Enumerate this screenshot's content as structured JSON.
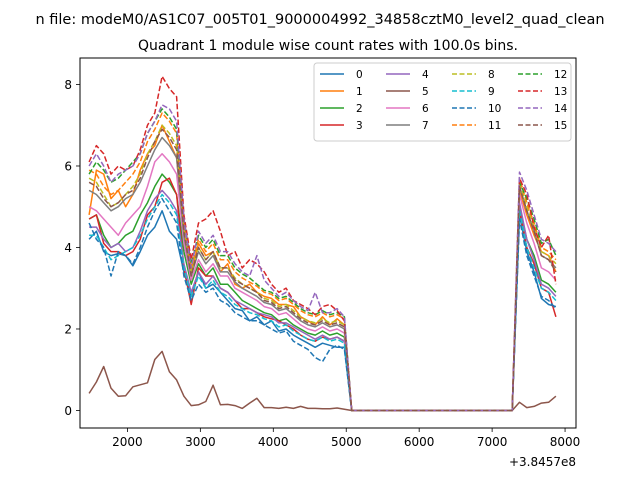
{
  "figure": {
    "suptitle": "n file: modeM0/AS1C07_005T01_9000004992_34858cztM0_level2_quad_clean",
    "title": "Quadrant 1 module wise count rates with 100.0s bins."
  },
  "chart_data": {
    "type": "line",
    "xlim": [
      1350,
      8150
    ],
    "ylim": [
      -0.43,
      8.65
    ],
    "x_offset_label": "+3.8457e8",
    "x_ticks": [
      2000,
      3000,
      4000,
      5000,
      6000,
      7000,
      8000
    ],
    "x_tick_labels": [
      "2000",
      "3000",
      "4000",
      "5000",
      "6000",
      "7000",
      "8000"
    ],
    "y_ticks": [
      0,
      2,
      4,
      6,
      8
    ],
    "y_tick_labels": [
      "0",
      "2",
      "4",
      "6",
      "8"
    ],
    "grid": false,
    "legend": {
      "placement": "upper right",
      "columns": 4
    },
    "x": [
      1475,
      1575,
      1675,
      1775,
      1875,
      1975,
      2075,
      2175,
      2275,
      2375,
      2475,
      2575,
      2675,
      2775,
      2875,
      2975,
      3075,
      3175,
      3275,
      3375,
      3475,
      3575,
      3675,
      3775,
      3875,
      3975,
      4075,
      4175,
      4275,
      4375,
      4475,
      4575,
      4675,
      4775,
      4875,
      4975,
      5075,
      5175,
      5275,
      5375,
      5475,
      5575,
      5675,
      5775,
      5875,
      5975,
      6075,
      6175,
      6275,
      6375,
      6475,
      6575,
      6675,
      6775,
      6875,
      6975,
      7075,
      7175,
      7275,
      7375,
      7475,
      7575,
      7675,
      7775,
      7875
    ],
    "series": [
      {
        "name": "0",
        "color": "#1f77b4",
        "dash": "solid",
        "values": [
          4.2,
          4.4,
          3.9,
          3.8,
          3.85,
          3.8,
          3.55,
          3.9,
          4.3,
          4.5,
          4.9,
          4.4,
          4.2,
          3.4,
          2.8,
          3.4,
          3.0,
          3.1,
          2.9,
          2.7,
          2.5,
          2.45,
          2.2,
          2.3,
          2.1,
          2.2,
          1.95,
          2.0,
          1.85,
          1.75,
          1.65,
          1.55,
          1.65,
          1.6,
          1.55,
          1.55,
          0.0,
          0.0,
          0.0,
          0.0,
          0.0,
          0.0,
          0.0,
          0.0,
          0.0,
          0.0,
          0.0,
          0.0,
          0.0,
          0.0,
          0.0,
          0.0,
          0.0,
          0.0,
          0.0,
          0.0,
          0.0,
          0.0,
          0.0,
          4.8,
          3.9,
          3.4,
          2.75,
          2.6,
          2.55
        ]
      },
      {
        "name": "1",
        "color": "#ff7f0e",
        "dash": "solid",
        "values": [
          4.8,
          5.9,
          5.8,
          5.2,
          5.4,
          5.0,
          5.3,
          5.9,
          6.3,
          6.5,
          7.0,
          6.6,
          6.2,
          4.3,
          3.4,
          4.1,
          3.8,
          3.9,
          3.4,
          3.6,
          3.1,
          3.0,
          3.1,
          2.9,
          2.8,
          2.75,
          2.6,
          2.6,
          2.55,
          2.3,
          2.2,
          2.1,
          2.3,
          2.1,
          2.25,
          2.1,
          0.0,
          0.0,
          0.0,
          0.0,
          0.0,
          0.0,
          0.0,
          0.0,
          0.0,
          0.0,
          0.0,
          0.0,
          0.0,
          0.0,
          0.0,
          0.0,
          0.0,
          0.0,
          0.0,
          0.0,
          0.0,
          0.0,
          0.0,
          5.4,
          4.8,
          4.3,
          3.9,
          3.8,
          3.4
        ]
      },
      {
        "name": "2",
        "color": "#2ca02c",
        "dash": "solid",
        "values": [
          4.7,
          4.8,
          4.3,
          4.0,
          4.1,
          4.3,
          4.4,
          4.8,
          5.1,
          5.5,
          5.8,
          5.6,
          5.3,
          3.9,
          3.1,
          3.6,
          3.3,
          3.5,
          3.1,
          3.1,
          2.9,
          2.7,
          2.6,
          2.5,
          2.4,
          2.35,
          2.2,
          2.25,
          2.1,
          2.0,
          1.9,
          1.85,
          1.95,
          1.85,
          1.9,
          1.8,
          0.0,
          0.0,
          0.0,
          0.0,
          0.0,
          0.0,
          0.0,
          0.0,
          0.0,
          0.0,
          0.0,
          0.0,
          0.0,
          0.0,
          0.0,
          0.0,
          0.0,
          0.0,
          0.0,
          0.0,
          0.0,
          0.0,
          0.0,
          5.0,
          4.2,
          3.8,
          3.2,
          3.1,
          2.9
        ]
      },
      {
        "name": "3",
        "color": "#d62728",
        "dash": "solid",
        "values": [
          4.7,
          4.8,
          4.1,
          3.9,
          3.9,
          3.8,
          3.9,
          4.2,
          4.8,
          5.0,
          5.6,
          5.7,
          5.3,
          3.5,
          2.6,
          3.5,
          3.3,
          3.3,
          3.0,
          2.9,
          2.7,
          2.5,
          2.5,
          2.4,
          2.3,
          2.25,
          2.2,
          2.1,
          2.0,
          1.85,
          1.75,
          1.7,
          1.8,
          1.75,
          1.8,
          1.7,
          0.0,
          0.0,
          0.0,
          0.0,
          0.0,
          0.0,
          0.0,
          0.0,
          0.0,
          0.0,
          0.0,
          0.0,
          0.0,
          0.0,
          0.0,
          0.0,
          0.0,
          0.0,
          0.0,
          0.0,
          0.0,
          0.0,
          0.0,
          4.9,
          4.0,
          3.6,
          3.0,
          2.9,
          2.3
        ]
      },
      {
        "name": "4",
        "color": "#9467bd",
        "dash": "solid",
        "values": [
          4.5,
          4.5,
          4.2,
          4.0,
          4.1,
          3.9,
          4.0,
          4.4,
          4.9,
          5.2,
          5.4,
          5.2,
          4.9,
          3.6,
          2.9,
          3.4,
          3.1,
          3.3,
          3.0,
          2.9,
          2.7,
          2.6,
          2.5,
          2.4,
          2.35,
          2.3,
          2.15,
          2.15,
          2.05,
          1.95,
          1.85,
          1.75,
          1.85,
          1.75,
          1.8,
          1.7,
          0.0,
          0.0,
          0.0,
          0.0,
          0.0,
          0.0,
          0.0,
          0.0,
          0.0,
          0.0,
          0.0,
          0.0,
          0.0,
          0.0,
          0.0,
          0.0,
          0.0,
          0.0,
          0.0,
          0.0,
          0.0,
          0.0,
          0.0,
          5.1,
          4.2,
          3.7,
          3.1,
          3.0,
          2.8
        ]
      },
      {
        "name": "5",
        "color": "#8c564b",
        "dash": "solid",
        "values": [
          0.42,
          0.7,
          1.08,
          0.55,
          0.35,
          0.36,
          0.58,
          0.63,
          0.68,
          1.25,
          1.45,
          0.95,
          0.75,
          0.35,
          0.12,
          0.14,
          0.22,
          0.62,
          0.14,
          0.15,
          0.12,
          0.05,
          0.18,
          0.3,
          0.07,
          0.07,
          0.05,
          0.08,
          0.05,
          0.1,
          0.05,
          0.05,
          0.04,
          0.04,
          0.06,
          0.03,
          0.0,
          0.0,
          0.0,
          0.0,
          0.0,
          0.0,
          0.0,
          0.0,
          0.0,
          0.0,
          0.0,
          0.0,
          0.0,
          0.0,
          0.0,
          0.0,
          0.0,
          0.0,
          0.0,
          0.0,
          0.0,
          0.0,
          0.0,
          0.2,
          0.07,
          0.1,
          0.18,
          0.2,
          0.35
        ]
      },
      {
        "name": "6",
        "color": "#e377c2",
        "dash": "solid",
        "values": [
          5.0,
          4.9,
          4.7,
          4.5,
          4.3,
          4.6,
          4.8,
          5.0,
          5.5,
          6.1,
          6.3,
          6.1,
          5.8,
          4.1,
          3.2,
          3.7,
          3.4,
          3.6,
          3.3,
          3.3,
          3.0,
          2.9,
          2.8,
          2.7,
          2.55,
          2.5,
          2.35,
          2.4,
          2.25,
          2.1,
          2.0,
          1.95,
          2.05,
          1.95,
          2.0,
          1.9,
          0.0,
          0.0,
          0.0,
          0.0,
          0.0,
          0.0,
          0.0,
          0.0,
          0.0,
          0.0,
          0.0,
          0.0,
          0.0,
          0.0,
          0.0,
          0.0,
          0.0,
          0.0,
          0.0,
          0.0,
          0.0,
          0.0,
          0.0,
          5.3,
          4.6,
          4.1,
          3.5,
          3.4,
          3.2
        ]
      },
      {
        "name": "7",
        "color": "#7f7f7f",
        "dash": "solid",
        "values": [
          5.4,
          5.3,
          5.1,
          4.9,
          5.0,
          5.2,
          5.3,
          5.6,
          6.0,
          6.4,
          6.7,
          6.5,
          6.2,
          4.3,
          3.3,
          3.9,
          3.6,
          3.8,
          3.4,
          3.4,
          3.15,
          3.0,
          2.9,
          2.8,
          2.65,
          2.6,
          2.45,
          2.5,
          2.35,
          2.2,
          2.1,
          2.05,
          2.15,
          2.05,
          2.1,
          2.0,
          0.0,
          0.0,
          0.0,
          0.0,
          0.0,
          0.0,
          0.0,
          0.0,
          0.0,
          0.0,
          0.0,
          0.0,
          0.0,
          0.0,
          0.0,
          0.0,
          0.0,
          0.0,
          0.0,
          0.0,
          0.0,
          0.0,
          0.0,
          5.5,
          4.9,
          4.4,
          3.8,
          3.7,
          3.5
        ]
      },
      {
        "name": "8",
        "color": "#bcbd22",
        "dash": "dashed",
        "values": [
          5.7,
          5.6,
          5.3,
          5.0,
          5.1,
          5.3,
          5.5,
          5.8,
          6.3,
          6.6,
          7.0,
          6.8,
          6.5,
          4.5,
          3.4,
          4.0,
          3.7,
          3.9,
          3.5,
          3.5,
          3.25,
          3.1,
          3.0,
          2.9,
          2.75,
          2.7,
          2.55,
          2.6,
          2.45,
          2.3,
          2.2,
          2.15,
          2.25,
          2.15,
          2.2,
          2.1,
          0.0,
          0.0,
          0.0,
          0.0,
          0.0,
          0.0,
          0.0,
          0.0,
          0.0,
          0.0,
          0.0,
          0.0,
          0.0,
          0.0,
          0.0,
          0.0,
          0.0,
          0.0,
          0.0,
          0.0,
          0.0,
          0.0,
          0.0,
          5.6,
          5.0,
          4.5,
          3.9,
          3.8,
          3.6
        ]
      },
      {
        "name": "9",
        "color": "#17becf",
        "dash": "dashed",
        "values": [
          4.3,
          4.3,
          4.0,
          3.7,
          3.8,
          3.9,
          4.0,
          4.3,
          4.7,
          5.0,
          5.3,
          5.1,
          4.8,
          3.5,
          2.8,
          3.3,
          3.0,
          3.2,
          2.9,
          2.8,
          2.6,
          2.5,
          2.4,
          2.35,
          2.25,
          2.2,
          2.05,
          2.1,
          1.95,
          1.85,
          1.75,
          1.7,
          1.8,
          1.7,
          1.75,
          1.65,
          0.0,
          0.0,
          0.0,
          0.0,
          0.0,
          0.0,
          0.0,
          0.0,
          0.0,
          0.0,
          0.0,
          0.0,
          0.0,
          0.0,
          0.0,
          0.0,
          0.0,
          0.0,
          0.0,
          0.0,
          0.0,
          0.0,
          0.0,
          4.9,
          4.0,
          3.5,
          3.0,
          2.9,
          2.7
        ]
      },
      {
        "name": "10",
        "color": "#1f77b4",
        "dash": "dashed",
        "values": [
          4.6,
          4.2,
          4.0,
          3.3,
          3.9,
          3.8,
          3.6,
          4.0,
          4.5,
          4.9,
          5.2,
          4.9,
          4.6,
          3.3,
          2.7,
          3.1,
          2.9,
          3.0,
          2.7,
          2.6,
          2.4,
          2.3,
          2.2,
          2.2,
          2.1,
          2.0,
          1.9,
          1.95,
          1.7,
          1.6,
          1.5,
          1.3,
          1.2,
          1.5,
          1.6,
          1.5,
          0.0,
          0.0,
          0.0,
          0.0,
          0.0,
          0.0,
          0.0,
          0.0,
          0.0,
          0.0,
          0.0,
          0.0,
          0.0,
          0.0,
          0.0,
          0.0,
          0.0,
          0.0,
          0.0,
          0.0,
          0.0,
          0.0,
          0.0,
          4.7,
          3.8,
          3.3,
          2.8,
          2.7,
          2.5
        ]
      },
      {
        "name": "11",
        "color": "#ff7f0e",
        "dash": "dashed",
        "values": [
          5.9,
          5.8,
          5.5,
          5.3,
          5.4,
          5.6,
          5.8,
          6.1,
          6.6,
          6.9,
          7.3,
          7.1,
          6.8,
          4.6,
          3.5,
          4.2,
          3.9,
          4.1,
          3.7,
          3.7,
          3.4,
          3.25,
          3.15,
          3.05,
          2.9,
          2.85,
          2.7,
          2.75,
          2.6,
          2.45,
          2.35,
          2.3,
          2.4,
          2.3,
          2.35,
          2.25,
          0.0,
          0.0,
          0.0,
          0.0,
          0.0,
          0.0,
          0.0,
          0.0,
          0.0,
          0.0,
          0.0,
          0.0,
          0.0,
          0.0,
          0.0,
          0.0,
          0.0,
          0.0,
          0.0,
          0.0,
          0.0,
          0.0,
          0.0,
          5.7,
          5.1,
          4.6,
          4.0,
          3.9,
          3.7
        ]
      },
      {
        "name": "12",
        "color": "#2ca02c",
        "dash": "dashed",
        "values": [
          5.8,
          6.1,
          5.9,
          5.6,
          5.7,
          5.9,
          6.1,
          6.3,
          6.8,
          7.1,
          7.4,
          7.2,
          6.9,
          4.7,
          3.6,
          4.3,
          4.0,
          4.2,
          3.8,
          3.8,
          3.5,
          3.35,
          3.25,
          3.1,
          2.95,
          2.9,
          2.75,
          2.8,
          2.65,
          2.5,
          2.4,
          2.35,
          2.45,
          2.35,
          2.4,
          2.3,
          0.0,
          0.0,
          0.0,
          0.0,
          0.0,
          0.0,
          0.0,
          0.0,
          0.0,
          0.0,
          0.0,
          0.0,
          0.0,
          0.0,
          0.0,
          0.0,
          0.0,
          0.0,
          0.0,
          0.0,
          0.0,
          0.0,
          0.0,
          5.6,
          5.2,
          4.7,
          4.1,
          4.2,
          3.8
        ]
      },
      {
        "name": "13",
        "color": "#d62728",
        "dash": "dashed",
        "values": [
          6.1,
          6.5,
          6.3,
          5.8,
          6.0,
          5.9,
          6.0,
          6.4,
          7.0,
          7.3,
          8.2,
          7.9,
          7.7,
          4.8,
          3.7,
          4.6,
          4.7,
          4.9,
          4.4,
          3.8,
          3.9,
          3.5,
          3.7,
          3.6,
          3.4,
          3.1,
          2.9,
          3.0,
          2.7,
          2.6,
          2.5,
          2.35,
          2.55,
          2.6,
          2.45,
          2.2,
          0.0,
          0.0,
          0.0,
          0.0,
          0.0,
          0.0,
          0.0,
          0.0,
          0.0,
          0.0,
          0.0,
          0.0,
          0.0,
          0.0,
          0.0,
          0.0,
          0.0,
          0.0,
          0.0,
          0.0,
          0.0,
          0.0,
          0.0,
          5.7,
          5.3,
          4.5,
          4.0,
          4.3,
          3.1
        ]
      },
      {
        "name": "14",
        "color": "#9467bd",
        "dash": "dashed",
        "values": [
          6.0,
          6.3,
          6.0,
          5.6,
          5.8,
          5.9,
          6.0,
          6.3,
          6.8,
          7.1,
          7.5,
          7.4,
          7.1,
          4.7,
          3.5,
          4.4,
          4.1,
          4.3,
          3.9,
          3.9,
          3.6,
          3.4,
          3.3,
          3.8,
          3.2,
          3.0,
          2.8,
          2.9,
          2.7,
          2.55,
          2.45,
          2.9,
          2.4,
          2.4,
          2.5,
          2.3,
          0.0,
          0.0,
          0.0,
          0.0,
          0.0,
          0.0,
          0.0,
          0.0,
          0.0,
          0.0,
          0.0,
          0.0,
          0.0,
          0.0,
          0.0,
          0.0,
          0.0,
          0.0,
          0.0,
          0.0,
          0.0,
          0.0,
          0.0,
          5.85,
          5.4,
          4.8,
          4.2,
          4.1,
          3.9
        ]
      },
      {
        "name": "15",
        "color": "#8c564b",
        "dash": "dashed",
        "values": [
          5.6,
          5.5,
          5.2,
          5.0,
          5.1,
          5.3,
          5.4,
          5.7,
          6.2,
          6.6,
          6.9,
          6.7,
          6.4,
          4.4,
          3.3,
          4.0,
          3.7,
          3.9,
          3.5,
          3.5,
          3.2,
          3.1,
          3.0,
          2.9,
          2.7,
          2.65,
          2.5,
          2.55,
          2.4,
          2.25,
          2.15,
          2.1,
          2.2,
          2.1,
          2.15,
          2.05,
          0.0,
          0.0,
          0.0,
          0.0,
          0.0,
          0.0,
          0.0,
          0.0,
          0.0,
          0.0,
          0.0,
          0.0,
          0.0,
          0.0,
          0.0,
          0.0,
          0.0,
          0.0,
          0.0,
          0.0,
          0.0,
          0.0,
          0.0,
          5.5,
          4.9,
          4.4,
          3.8,
          3.7,
          3.4
        ]
      }
    ]
  }
}
